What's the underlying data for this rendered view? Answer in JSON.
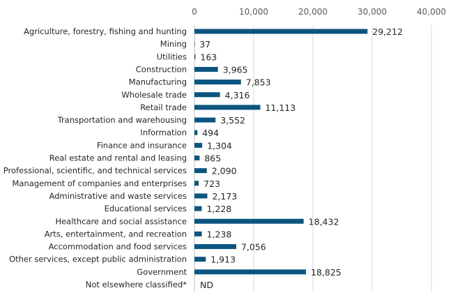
{
  "chart_data": {
    "type": "bar",
    "orientation": "horizontal",
    "categories": [
      "Agriculture, forestry, fishing and hunting",
      "Mining",
      "Utilities",
      "Construction",
      "Manufacturing",
      "Wholesale trade",
      "Retail trade",
      "Transportation and warehousing",
      "Information",
      "Finance and insurance",
      "Real estate and rental and leasing",
      "Professional, scientific, and technical services",
      "Management of companies and enterprises",
      "Administrative and waste services",
      "Educational services",
      "Healthcare and social assistance",
      "Arts, entertainment, and recreation",
      "Accommodation and food services",
      "Other services, except public administration",
      "Government",
      "Not elsewhere classified*"
    ],
    "values": [
      29212,
      37,
      163,
      3965,
      7853,
      4316,
      11113,
      3552,
      494,
      1304,
      865,
      2090,
      723,
      2173,
      1228,
      18432,
      1238,
      7056,
      1913,
      18825,
      null
    ],
    "data_labels": [
      "29,212",
      "37",
      "163",
      "3,965",
      "7,853",
      "4,316",
      "11,113",
      "3,552",
      "494",
      "1,304",
      "865",
      "2,090",
      "723",
      "2,173",
      "1,228",
      "18,432",
      "1,238",
      "7,056",
      "1,913",
      "18,825",
      "ND"
    ],
    "xlim": [
      0,
      40000
    ],
    "x_ticks": [
      "0",
      "10,000",
      "20,000",
      "30,000",
      "40,000"
    ],
    "x_axis_position": "top",
    "grid": true,
    "bar_color": "#0b5580",
    "grid_color": "#d9d9d9"
  }
}
